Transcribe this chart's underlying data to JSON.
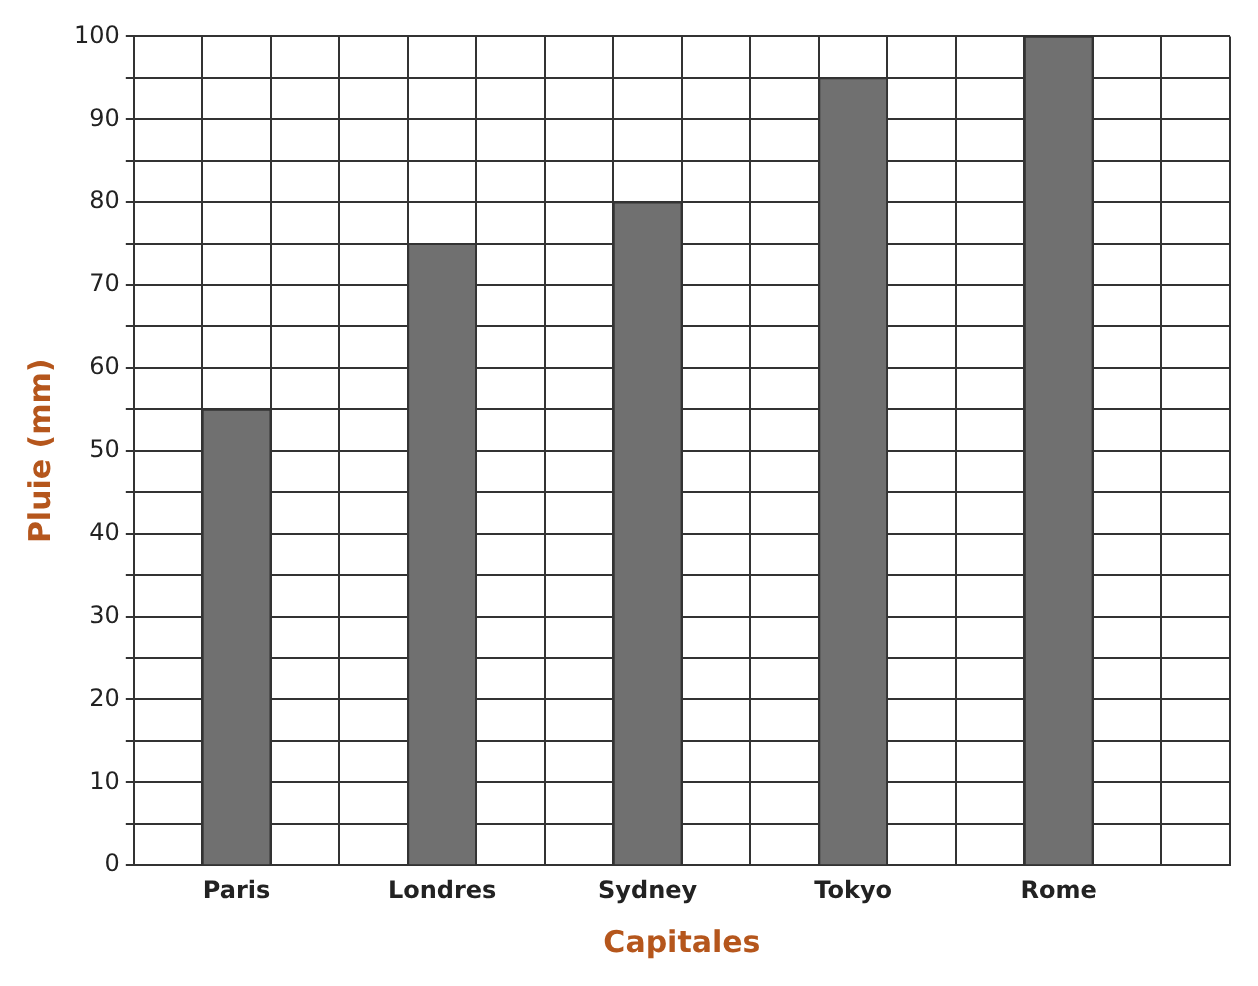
{
  "chart_data": {
    "type": "bar",
    "xlabel": "Capitales",
    "ylabel": "Pluie (mm)",
    "categories": [
      null,
      "Paris",
      null,
      null,
      "Londres",
      null,
      null,
      "Sydney",
      null,
      null,
      "Tokyo",
      null,
      null,
      "Rome",
      null,
      null
    ],
    "values": [
      null,
      55,
      null,
      null,
      75,
      null,
      null,
      80,
      null,
      null,
      95,
      null,
      null,
      100,
      null,
      null
    ],
    "color": "#707070",
    "ylim": [
      0,
      100
    ],
    "yticks": [
      0,
      {
        "value": 5,
        "label": null
      },
      10,
      {
        "value": 15,
        "label": null
      },
      20,
      {
        "value": 25,
        "label": null
      },
      30,
      {
        "value": 35,
        "label": null
      },
      40,
      {
        "value": 45,
        "label": null
      },
      50,
      {
        "value": 55,
        "label": null
      },
      60,
      {
        "value": 65,
        "label": null
      },
      70,
      {
        "value": 75,
        "label": null
      },
      80,
      {
        "value": 85,
        "label": null
      },
      90,
      {
        "value": 95,
        "label": null
      },
      100
    ],
    "grid": true,
    "legend": false
  }
}
